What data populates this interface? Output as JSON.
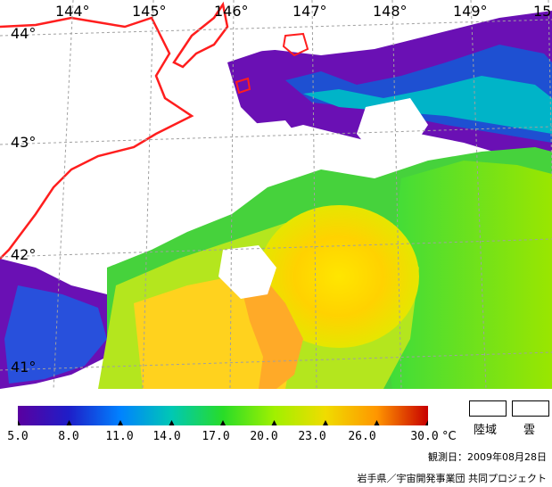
{
  "map": {
    "longitudes": [
      "144°",
      "145°",
      "146°",
      "147°",
      "148°",
      "149°",
      "15"
    ],
    "latitudes": [
      "44°",
      "43°",
      "42°",
      "41°"
    ],
    "colors": {
      "grid": "#b4b4b4",
      "coast": "#ff0000",
      "land": "#ffffff",
      "cloud": "#ffffff"
    }
  },
  "colorbar": {
    "ticks": [
      "5.0",
      "8.0",
      "11.0",
      "14.0",
      "17.0",
      "20.0",
      "23.0",
      "26.0",
      "30.0"
    ],
    "unit": "°C",
    "colors": [
      "#5a00a0",
      "#1e1ec8",
      "#0082ff",
      "#00c8b4",
      "#28dc28",
      "#a0f000",
      "#f0dc00",
      "#ff9600",
      "#c80000"
    ]
  },
  "legend": {
    "land_label": "陸域",
    "cloud_label": "雲"
  },
  "footer": {
    "date": "観測日：2009年08月28日",
    "credit": "岩手県／宇宙開発事業団 共同プロジェクト"
  }
}
